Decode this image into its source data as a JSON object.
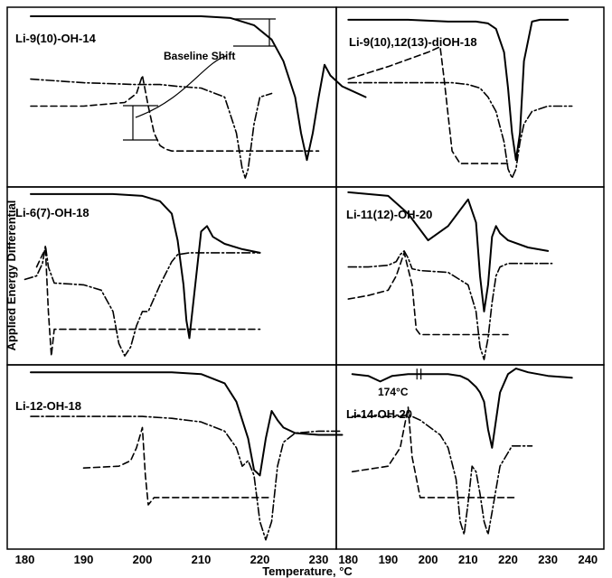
{
  "chart_data": {
    "type": "line",
    "ylabel": "Applied Energy Differential",
    "xlabel": "Temperature, °C",
    "x_ticks_left": [
      "180",
      "190",
      "200",
      "210",
      "220",
      "230"
    ],
    "x_ticks_right": [
      "180",
      "190",
      "200",
      "210",
      "220",
      "230",
      "240"
    ],
    "xlim_left": [
      177,
      233
    ],
    "xlim_right": [
      177,
      244
    ],
    "panels": [
      {
        "label": "Li-9(10)-OH-14",
        "annotation": "Baseline Shift",
        "series": [
          {
            "style": "solid",
            "x": [
              181,
              190,
              200,
              210,
              215,
              219,
              222,
              224,
              226,
              227,
              228,
              229,
              230,
              231,
              232,
              234,
              238
            ],
            "y": [
              0.95,
              0.95,
              0.95,
              0.95,
              0.94,
              0.9,
              0.82,
              0.7,
              0.5,
              0.3,
              0.15,
              0.3,
              0.5,
              0.68,
              0.62,
              0.56,
              0.5
            ]
          },
          {
            "style": "dashdot",
            "x": [
              181,
              190,
              199,
              200,
              201,
              203,
              206,
              210,
              214,
              216,
              217,
              217.5,
              218,
              219,
              220,
              222
            ],
            "y": [
              0.6,
              0.58,
              0.57,
              0.57,
              0.57,
              0.57,
              0.56,
              0.55,
              0.5,
              0.3,
              0.1,
              0.05,
              0.1,
              0.35,
              0.5,
              0.52
            ]
          },
          {
            "style": "dashed",
            "x": [
              181,
              190,
              197,
              199,
              200,
              201,
              202,
              203,
              204,
              205,
              206,
              207,
              210,
              220,
              230
            ],
            "y": [
              0.45,
              0.45,
              0.47,
              0.52,
              0.62,
              0.45,
              0.3,
              0.23,
              0.21,
              0.2,
              0.2,
              0.2,
              0.2,
              0.2,
              0.2
            ]
          }
        ]
      },
      {
        "label": "Li-9(10),12(13)-diOH-18",
        "series": [
          {
            "style": "solid",
            "x": [
              180,
              195,
              205,
              212,
              215,
              217,
              219,
              220,
              221,
              222,
              223,
              224,
              226,
              228,
              235
            ],
            "y": [
              0.93,
              0.93,
              0.92,
              0.92,
              0.91,
              0.88,
              0.75,
              0.55,
              0.3,
              0.15,
              0.3,
              0.7,
              0.92,
              0.93,
              0.93
            ]
          },
          {
            "style": "dashed",
            "x": [
              180,
              190,
              200,
              203,
              204,
              205,
              206,
              208,
              212,
              220
            ],
            "y": [
              0.6,
              0.67,
              0.75,
              0.78,
              0.6,
              0.4,
              0.2,
              0.13,
              0.13,
              0.13
            ]
          },
          {
            "style": "dashdot",
            "x": [
              180,
              190,
              200,
              206,
              210,
              213,
              215,
              217,
              219,
              220,
              221,
              222,
              223,
              224,
              226,
              230,
              236
            ],
            "y": [
              0.58,
              0.58,
              0.58,
              0.58,
              0.57,
              0.55,
              0.5,
              0.42,
              0.25,
              0.1,
              0.05,
              0.1,
              0.25,
              0.35,
              0.42,
              0.45,
              0.45
            ]
          }
        ]
      },
      {
        "label": "Li-6(7)-OH-18",
        "series": [
          {
            "style": "solid",
            "x": [
              181,
              195,
              200,
              203,
              205,
              206,
              207,
              207.5,
              208,
              209,
              210,
              211,
              212,
              214,
              217,
              220
            ],
            "y": [
              0.96,
              0.96,
              0.95,
              0.92,
              0.85,
              0.7,
              0.45,
              0.25,
              0.15,
              0.45,
              0.75,
              0.78,
              0.72,
              0.68,
              0.65,
              0.63
            ]
          },
          {
            "style": "dashdot",
            "x": [
              180,
              182,
              183,
              183.5,
              184,
              185,
              190,
              193,
              195,
              196,
              197,
              198,
              199,
              200,
              201,
              203,
              205,
              206,
              208,
              212,
              218,
              220
            ],
            "y": [
              0.48,
              0.5,
              0.57,
              0.67,
              0.55,
              0.46,
              0.45,
              0.42,
              0.3,
              0.12,
              0.05,
              0.1,
              0.22,
              0.3,
              0.3,
              0.45,
              0.58,
              0.62,
              0.63,
              0.63,
              0.63,
              0.63
            ]
          },
          {
            "style": "dashed",
            "x": [
              182,
              183,
              183.5,
              184,
              184.5,
              185,
              186,
              190,
              200,
              210,
              220
            ],
            "y": [
              0.55,
              0.62,
              0.65,
              0.3,
              0.05,
              0.2,
              0.2,
              0.2,
              0.2,
              0.2,
              0.2
            ]
          }
        ]
      },
      {
        "label": "Li-11(12)-OH-20",
        "series": [
          {
            "style": "solid",
            "x": [
              180,
              190,
              195,
              200,
              205,
              210,
              212,
              213,
              214,
              215,
              216,
              217,
              218,
              220,
              225,
              230
            ],
            "y": [
              0.97,
              0.95,
              0.85,
              0.7,
              0.78,
              0.93,
              0.8,
              0.5,
              0.3,
              0.45,
              0.72,
              0.78,
              0.74,
              0.7,
              0.66,
              0.64
            ]
          },
          {
            "style": "dashdot",
            "x": [
              180,
              185,
              190,
              192,
              193,
              194,
              195,
              196,
              198,
              205,
              210,
              212,
              213,
              214,
              215,
              216,
              217,
              218,
              220,
              225,
              231
            ],
            "y": [
              0.55,
              0.55,
              0.56,
              0.58,
              0.62,
              0.64,
              0.6,
              0.54,
              0.53,
              0.52,
              0.45,
              0.3,
              0.1,
              0.03,
              0.15,
              0.35,
              0.5,
              0.55,
              0.57,
              0.57,
              0.57
            ]
          },
          {
            "style": "dashed",
            "x": [
              180,
              185,
              190,
              192,
              194,
              196,
              197,
              198,
              200,
              210,
              220
            ],
            "y": [
              0.37,
              0.39,
              0.42,
              0.5,
              0.63,
              0.45,
              0.2,
              0.17,
              0.17,
              0.17,
              0.17
            ]
          }
        ]
      },
      {
        "label": "Li-12-OH-18",
        "series": [
          {
            "style": "solid",
            "x": [
              181,
              195,
              205,
              210,
              214,
              216,
              218,
              219,
              220,
              221,
              222,
              223,
              224,
              226,
              230,
              234
            ],
            "y": [
              0.96,
              0.96,
              0.96,
              0.95,
              0.9,
              0.8,
              0.6,
              0.43,
              0.4,
              0.6,
              0.75,
              0.7,
              0.66,
              0.63,
              0.62,
              0.62
            ]
          },
          {
            "style": "dashdot",
            "x": [
              181,
              190,
              200,
              205,
              210,
              214,
              216,
              217,
              218,
              219,
              220,
              221,
              222,
              223,
              224,
              226,
              230,
              234
            ],
            "y": [
              0.72,
              0.72,
              0.72,
              0.71,
              0.69,
              0.64,
              0.55,
              0.45,
              0.48,
              0.4,
              0.15,
              0.05,
              0.15,
              0.45,
              0.58,
              0.63,
              0.64,
              0.64
            ]
          },
          {
            "style": "dashed",
            "x": [
              190,
              196,
              198,
              199,
              200,
              200.5,
              201,
              202,
              204,
              210,
              215,
              220,
              222
            ],
            "y": [
              0.44,
              0.45,
              0.48,
              0.55,
              0.66,
              0.4,
              0.24,
              0.28,
              0.28,
              0.28,
              0.28,
              0.28,
              0.28
            ]
          }
        ]
      },
      {
        "label": "Li-14-OH-20",
        "annotation": "174°C",
        "series": [
          {
            "style": "solid",
            "x": [
              181,
              185,
              188,
              191,
              195,
              201,
              205,
              208,
              210,
              211,
              212,
              213,
              214,
              215,
              216,
              217,
              218,
              220,
              222,
              225,
              230,
              236
            ],
            "y": [
              0.95,
              0.94,
              0.91,
              0.94,
              0.95,
              0.95,
              0.95,
              0.94,
              0.92,
              0.9,
              0.88,
              0.85,
              0.8,
              0.65,
              0.55,
              0.7,
              0.85,
              0.95,
              0.98,
              0.96,
              0.94,
              0.93
            ]
          },
          {
            "style": "dashdot",
            "x": [
              181,
              188,
              193,
              195,
              198,
              203,
              205,
              207,
              208,
              209,
              210,
              211,
              212,
              213,
              214,
              215,
              216,
              218,
              221,
              226
            ],
            "y": [
              0.72,
              0.72,
              0.72,
              0.73,
              0.7,
              0.62,
              0.55,
              0.38,
              0.15,
              0.08,
              0.25,
              0.45,
              0.42,
              0.3,
              0.15,
              0.08,
              0.2,
              0.45,
              0.56,
              0.56
            ]
          },
          {
            "style": "dashed",
            "x": [
              181,
              190,
              193,
              195,
              196,
              198,
              200,
              205,
              210,
              215,
              220,
              222
            ],
            "y": [
              0.42,
              0.45,
              0.55,
              0.77,
              0.5,
              0.28,
              0.28,
              0.28,
              0.28,
              0.28,
              0.28,
              0.28
            ]
          }
        ]
      }
    ]
  }
}
